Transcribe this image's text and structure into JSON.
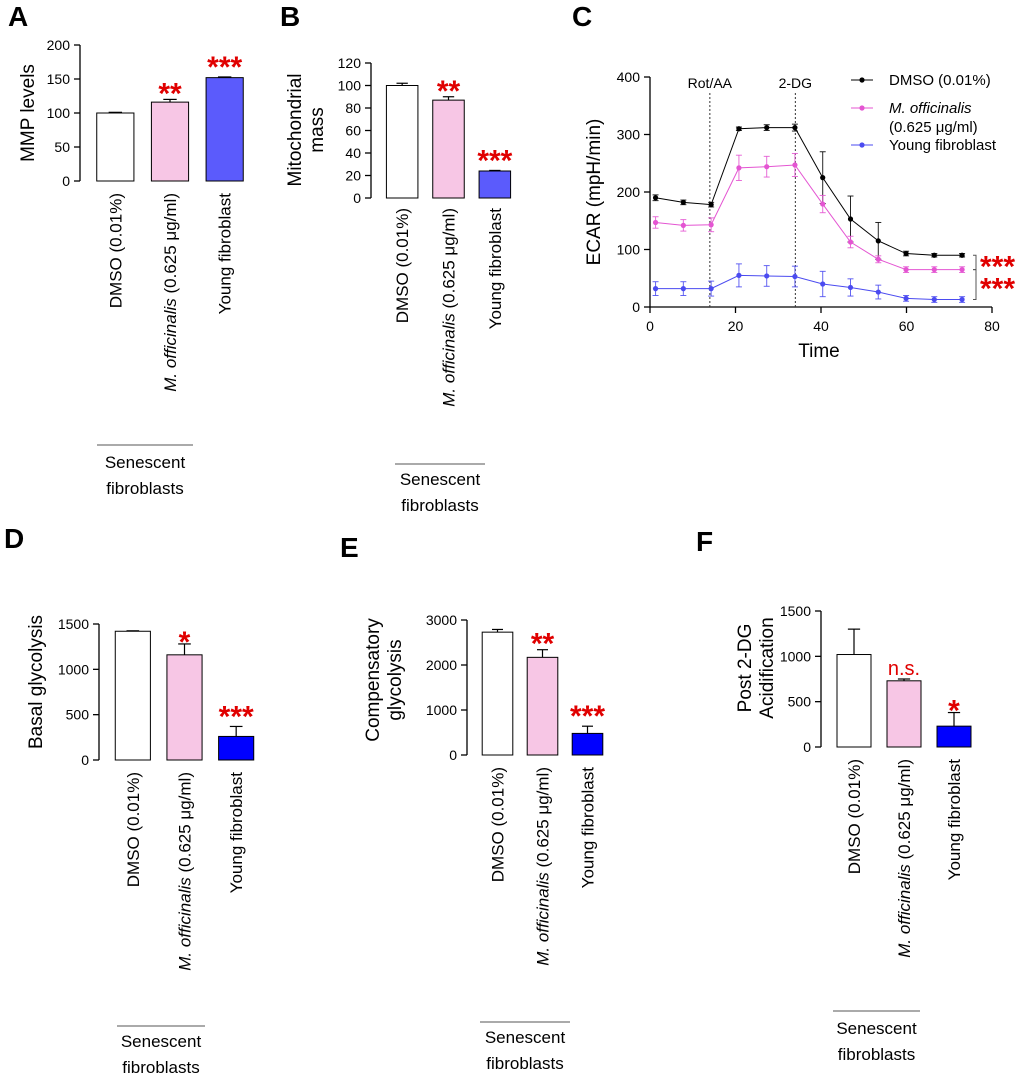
{
  "figure": {
    "group_label_line1": "Senescent",
    "group_label_line2": "fibroblasts"
  },
  "chart_data": [
    {
      "panel": "A",
      "type": "bar",
      "ylabel": "MMP levels",
      "ylim": [
        0,
        200
      ],
      "yticks": [
        0,
        50,
        100,
        150,
        200
      ],
      "categories": [
        "DMSO (0.01%)",
        "M. officinalis (0.625 μg/ml)",
        "Young fibroblast"
      ],
      "category_italic_prefix": [
        "",
        "M. officinalis",
        ""
      ],
      "category_plain_suffix": [
        "DMSO (0.01%)",
        " (0.625 μg/ml)",
        "Young fibroblast"
      ],
      "values": [
        100,
        116,
        152
      ],
      "errors": [
        1,
        4,
        1
      ],
      "colors": [
        "#ffffff",
        "#f7c6e5",
        "#5b5bfc"
      ],
      "significance": [
        "",
        "**",
        "***"
      ]
    },
    {
      "panel": "B",
      "type": "bar",
      "ylabel": "Mitochondrial mass",
      "ylabel_lines": [
        "Mitochondrial",
        "mass"
      ],
      "ylim": [
        0,
        120
      ],
      "yticks": [
        0,
        20,
        40,
        60,
        80,
        100,
        120
      ],
      "categories": [
        "DMSO (0.01%)",
        "M. officinalis (0.625 μg/ml)",
        "Young fibroblast"
      ],
      "values": [
        100,
        87,
        24
      ],
      "errors": [
        2,
        3,
        0.5
      ],
      "colors": [
        "#ffffff",
        "#f7c6e5",
        "#5b5bfc"
      ],
      "significance": [
        "",
        "**",
        "***"
      ]
    },
    {
      "panel": "C",
      "type": "line",
      "xlabel": "Time",
      "ylabel": "ECAR (mpH/min)",
      "xlim": [
        0,
        80
      ],
      "xticks": [
        0,
        20,
        40,
        60,
        80
      ],
      "ylim": [
        0,
        400
      ],
      "yticks": [
        0,
        100,
        200,
        300,
        400
      ],
      "annotations": [
        {
          "label": "Rot/AA",
          "x": 14
        },
        {
          "label": "2-DG",
          "x": 34
        }
      ],
      "significance": [
        "***",
        "***"
      ],
      "legend_position": "top-right",
      "x": [
        1.3,
        7.8,
        14.3,
        20.8,
        27.3,
        33.9,
        40.4,
        46.9,
        53.4,
        59.9,
        66.5,
        73.0
      ],
      "series": [
        {
          "name": "DMSO (0.01%)",
          "name_lines": [
            "DMSO (0.01%)"
          ],
          "color": "#000000",
          "values": [
            190,
            182,
            178,
            310,
            312,
            312,
            225,
            153,
            115,
            93,
            90,
            90
          ],
          "errors": [
            5,
            4,
            4,
            3,
            5,
            6,
            45,
            40,
            32,
            4,
            3,
            3
          ]
        },
        {
          "name": "M. officinalis (0.625 μg/ml)",
          "name_lines": [
            "M. officinalis",
            "(0.625 μg/ml)"
          ],
          "color": "#e455d2",
          "values": [
            147,
            142,
            143,
            242,
            244,
            247,
            179,
            113,
            83,
            65,
            65,
            65
          ],
          "errors": [
            10,
            10,
            12,
            22,
            18,
            20,
            15,
            10,
            6,
            5,
            5,
            5
          ]
        },
        {
          "name": "Young fibroblast",
          "name_lines": [
            "Young fibroblast"
          ],
          "color": "#4b4bf0",
          "values": [
            32,
            32,
            32,
            55,
            54,
            53,
            40,
            34,
            26,
            15,
            13,
            13
          ],
          "errors": [
            12,
            12,
            13,
            20,
            18,
            18,
            22,
            15,
            12,
            5,
            5,
            5
          ]
        }
      ]
    },
    {
      "panel": "D",
      "type": "bar",
      "ylabel": "Basal glycolysis",
      "ylim": [
        0,
        1500
      ],
      "yticks": [
        0,
        500,
        1000,
        1500
      ],
      "categories": [
        "DMSO (0.01%)",
        "M. officinalis (0.625 μg/ml)",
        "Young fibroblast"
      ],
      "values": [
        1420,
        1160,
        260
      ],
      "errors": [
        5,
        120,
        110
      ],
      "colors": [
        "#ffffff",
        "#f7c6e5",
        "#0000ff"
      ],
      "significance": [
        "",
        "*",
        "***"
      ]
    },
    {
      "panel": "E",
      "type": "bar",
      "ylabel": "Compensatory glycolysis",
      "ylabel_lines": [
        "Compensatory",
        "glycolysis"
      ],
      "ylim": [
        0,
        3000
      ],
      "yticks": [
        0,
        1000,
        2000,
        3000
      ],
      "categories": [
        "DMSO (0.01%)",
        "M. officinalis (0.625 μg/ml)",
        "Young fibroblast"
      ],
      "values": [
        2730,
        2170,
        480
      ],
      "errors": [
        60,
        170,
        160
      ],
      "colors": [
        "#ffffff",
        "#f7c6e5",
        "#0000ff"
      ],
      "significance": [
        "",
        "**",
        "***"
      ]
    },
    {
      "panel": "F",
      "type": "bar",
      "ylabel": "Post 2-DG Acidification",
      "ylabel_lines": [
        "Post 2-DG",
        "Acidification"
      ],
      "ylim": [
        0,
        1500
      ],
      "yticks": [
        0,
        500,
        1000,
        1500
      ],
      "categories": [
        "DMSO (0.01%)",
        "M. officinalis (0.625 μg/ml)",
        "Young fibroblast"
      ],
      "values": [
        1020,
        730,
        230
      ],
      "errors": [
        280,
        20,
        150
      ],
      "colors": [
        "#ffffff",
        "#f7c6e5",
        "#0000ff"
      ],
      "significance": [
        "",
        "n.s.",
        "*"
      ]
    }
  ]
}
